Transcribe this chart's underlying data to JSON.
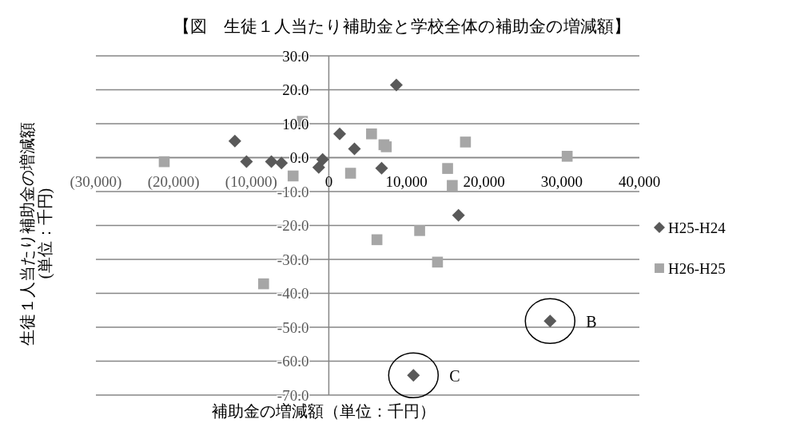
{
  "chart_data": {
    "type": "scatter",
    "title": "【図　生徒１人当たり補助金と学校全体の補助金の増減額】",
    "xlabel": "補助金の増減額（単位：千円）",
    "ylabel": "生徒１人当たり補助金の増減額\n(単位：千円)",
    "series": [
      {
        "name": "H25-H24",
        "color": "#595959",
        "marker": "diamond",
        "x": [
          -12100,
          -10600,
          -7400,
          -6100,
          -1300,
          -800,
          1400,
          3300,
          6800,
          8700,
          16700,
          28500,
          10900
        ],
        "values": [
          4.9,
          -1.2,
          -1.2,
          -1.6,
          -2.9,
          -0.5,
          7.0,
          2.6,
          -3.1,
          21.4,
          -17.0,
          -48.2,
          -64.2
        ]
      },
      {
        "name": "H26-H25",
        "color": "#a6a6a6",
        "marker": "square",
        "x": [
          -21200,
          -3400,
          -4600,
          2800,
          5500,
          7100,
          7400,
          17600,
          30700,
          15300,
          15900,
          6200,
          11700,
          14000,
          -8400
        ],
        "values": [
          -1.2,
          10.7,
          -5.4,
          -4.6,
          7.0,
          3.8,
          3.2,
          4.6,
          0.4,
          -3.2,
          -8.2,
          -24.2,
          -21.5,
          -30.8,
          -37.2
        ]
      }
    ],
    "xlim": [
      -30000,
      40000
    ],
    "xticks": [
      {
        "value": -30000,
        "label": "(30,000)"
      },
      {
        "value": -20000,
        "label": "(20,000)"
      },
      {
        "value": -10000,
        "label": "(10,000)"
      },
      0,
      {
        "value": 10000,
        "label": "10,000"
      },
      {
        "value": 20000,
        "label": "20,000"
      },
      {
        "value": 30000,
        "label": "30,000"
      },
      {
        "value": 40000,
        "label": "40,000"
      }
    ],
    "ylim": [
      -70,
      30
    ],
    "yticks": [
      {
        "value": 30,
        "label": "30.0"
      },
      {
        "value": 20,
        "label": "20.0"
      },
      {
        "value": 10,
        "label": "10.0"
      },
      {
        "value": 0,
        "label": "0.0"
      },
      {
        "value": -10,
        "label": "-10.0"
      },
      {
        "value": -20,
        "label": "-20.0"
      },
      {
        "value": -30,
        "label": "-30.0"
      },
      {
        "value": -40,
        "label": "-40.0"
      },
      {
        "value": -50,
        "label": "-50.0"
      },
      {
        "value": -60,
        "label": "-60.0"
      },
      {
        "value": -70,
        "label": "-70.0"
      }
    ],
    "grid": "y",
    "legend": "right",
    "annotations": [
      {
        "text": "B",
        "x": 28500,
        "y": -48.2
      },
      {
        "text": "C",
        "x": 10900,
        "y": -64.2
      }
    ]
  }
}
